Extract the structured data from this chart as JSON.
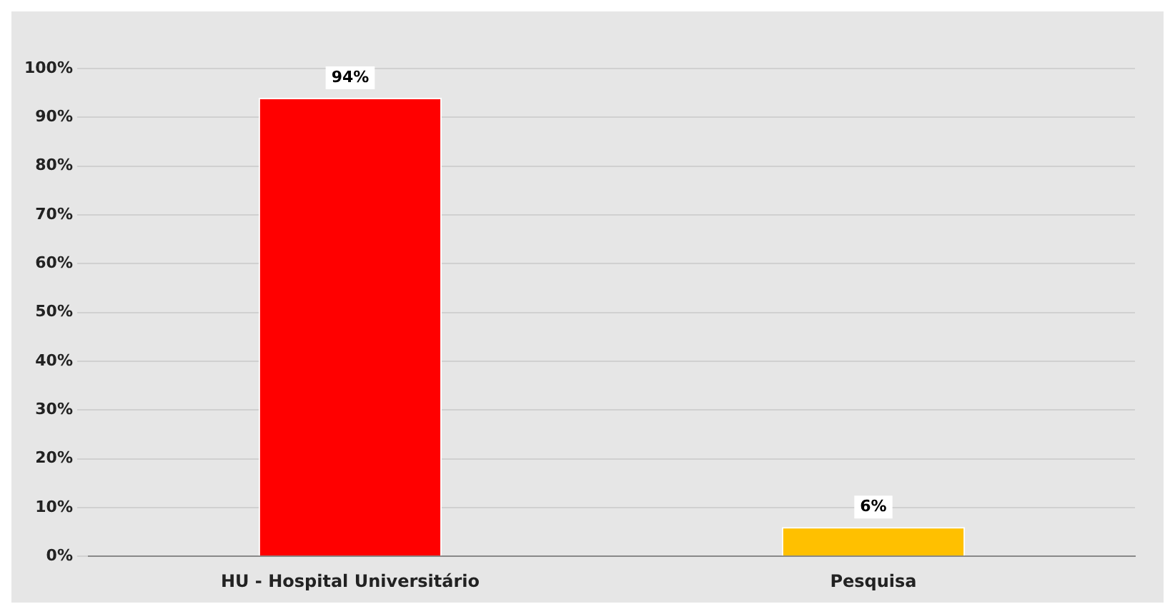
{
  "chart_data": {
    "type": "bar",
    "categories": [
      "HU - Hospital Universitário",
      "Pesquisa"
    ],
    "series": [
      {
        "colors": [
          "#ff0000",
          "#ffc000"
        ],
        "values": [
          94,
          6
        ],
        "value_labels": [
          "94%",
          "6%"
        ]
      }
    ],
    "ylim": [
      0,
      100
    ],
    "yticks": [
      {
        "value": 0,
        "label": "0%"
      },
      {
        "value": 10,
        "label": "10%"
      },
      {
        "value": 20,
        "label": "20%"
      },
      {
        "value": 30,
        "label": "30%"
      },
      {
        "value": 40,
        "label": "40%"
      },
      {
        "value": 50,
        "label": "50%"
      },
      {
        "value": 60,
        "label": "60%"
      },
      {
        "value": 70,
        "label": "70%"
      },
      {
        "value": 80,
        "label": "80%"
      },
      {
        "value": 90,
        "label": "90%"
      },
      {
        "value": 100,
        "label": "100%"
      }
    ],
    "grid": "y",
    "legend": false
  }
}
